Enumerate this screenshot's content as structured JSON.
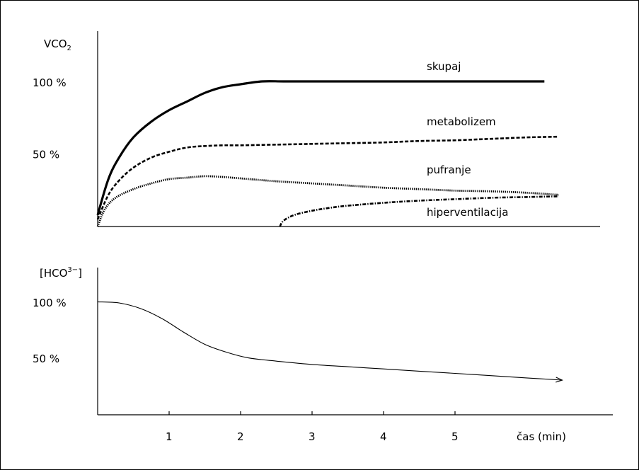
{
  "chart_data": [
    {
      "type": "line",
      "ylabel": "VCO2",
      "yticks": [
        {
          "value": 100,
          "label": "100 %"
        },
        {
          "value": 50,
          "label": "50 %"
        }
      ],
      "ylim": [
        0,
        100
      ],
      "xlim": [
        0,
        7
      ],
      "grid": false,
      "series": [
        {
          "name": "skupaj",
          "style": "solid-thick",
          "x": [
            0.0,
            0.15,
            0.3,
            0.5,
            0.75,
            1.0,
            1.25,
            1.5,
            1.75,
            2.0,
            2.3,
            2.6,
            3.0,
            3.5,
            4.0,
            4.5,
            5.0,
            5.5,
            6.0,
            6.25
          ],
          "y": [
            8,
            33,
            48,
            62,
            73,
            81,
            87,
            93,
            97,
            99,
            101,
            101,
            101,
            101,
            101,
            101,
            101,
            101,
            101,
            101
          ]
        },
        {
          "name": "metabolizem",
          "style": "dashed",
          "x": [
            0.0,
            0.15,
            0.3,
            0.5,
            0.75,
            1.0,
            1.25,
            1.5,
            1.75,
            2.0,
            2.5,
            3.0,
            3.5,
            4.0,
            4.5,
            5.0,
            5.5,
            6.0,
            6.45
          ],
          "y": [
            5,
            22,
            32,
            41,
            48,
            52,
            55,
            56,
            56.5,
            56.5,
            57,
            57.5,
            58,
            58.5,
            59.5,
            60,
            61,
            62,
            62.5
          ]
        },
        {
          "name": "pufranje",
          "style": "dotted",
          "x": [
            0.0,
            0.1,
            0.25,
            0.5,
            0.75,
            1.0,
            1.25,
            1.5,
            1.75,
            2.0,
            2.5,
            3.0,
            3.5,
            4.0,
            4.5,
            5.0,
            5.5,
            6.0,
            6.45
          ],
          "y": [
            0,
            12,
            20,
            26,
            30,
            33,
            34,
            35,
            34.5,
            33.5,
            31.5,
            30,
            28.5,
            27,
            26,
            25,
            24.5,
            23.5,
            22
          ]
        },
        {
          "name": "hiperventilacija",
          "style": "dash-dot",
          "x": [
            2.55,
            2.6,
            2.75,
            3.0,
            3.25,
            3.5,
            4.0,
            4.5,
            5.0,
            5.5,
            6.0,
            6.45
          ],
          "y": [
            0,
            4,
            8,
            11,
            13,
            14.5,
            16.5,
            18,
            19,
            20,
            20.5,
            21
          ]
        }
      ]
    },
    {
      "type": "line",
      "ylabel": "[HCO3−]",
      "yticks": [
        {
          "value": 100,
          "label": "100 %"
        },
        {
          "value": 50,
          "label": "50 %"
        }
      ],
      "ylim": [
        0,
        100
      ],
      "xlim": [
        0,
        7
      ],
      "xlabel": "čas (min)",
      "xticks": [
        1,
        2,
        3,
        4,
        5
      ],
      "grid": false,
      "series": [
        {
          "style": "thin-arrow",
          "x": [
            0.0,
            0.3,
            0.6,
            0.9,
            1.2,
            1.5,
            1.8,
            2.1,
            2.5,
            3.0,
            3.5,
            4.0,
            4.5,
            5.0,
            5.5,
            6.0,
            6.5
          ],
          "y": [
            101,
            100,
            95,
            86,
            74,
            63,
            56,
            51,
            48,
            45,
            43,
            41,
            39,
            37,
            35,
            33,
            31
          ]
        }
      ]
    }
  ]
}
